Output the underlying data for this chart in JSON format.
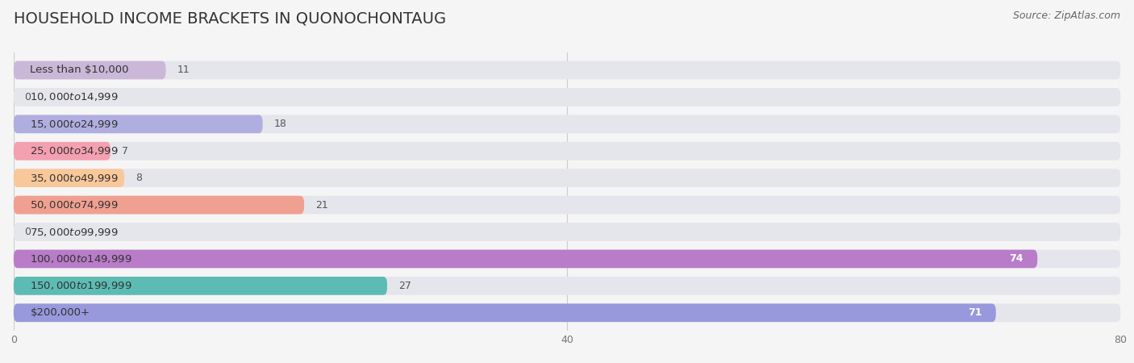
{
  "title": "HOUSEHOLD INCOME BRACKETS IN QUONOCHONTAUG",
  "source": "Source: ZipAtlas.com",
  "categories": [
    "Less than $10,000",
    "$10,000 to $14,999",
    "$15,000 to $24,999",
    "$25,000 to $34,999",
    "$35,000 to $49,999",
    "$50,000 to $74,999",
    "$75,000 to $99,999",
    "$100,000 to $149,999",
    "$150,000 to $199,999",
    "$200,000+"
  ],
  "values": [
    11,
    0,
    18,
    7,
    8,
    21,
    0,
    74,
    27,
    71
  ],
  "bar_colors": [
    "#cbb8d8",
    "#7ecec4",
    "#b0aee0",
    "#f4a0b0",
    "#f8c89a",
    "#f0a090",
    "#a8c8f0",
    "#b87cc8",
    "#5cbcb4",
    "#9898dc"
  ],
  "background_color": "#f5f5f5",
  "bar_bg_color": "#e5e5ec",
  "xlim": [
    0,
    80
  ],
  "xticks": [
    0,
    40,
    80
  ],
  "title_fontsize": 14,
  "label_fontsize": 9.5,
  "value_fontsize": 9,
  "source_fontsize": 9
}
